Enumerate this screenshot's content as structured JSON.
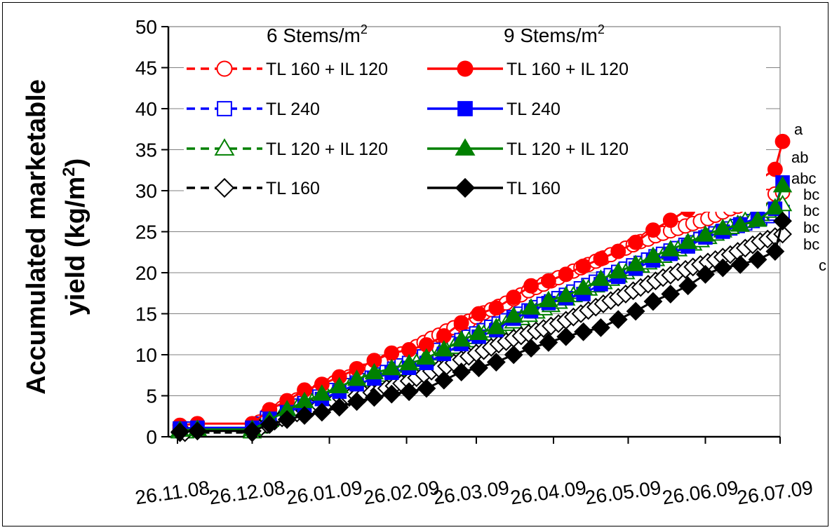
{
  "chart_data": {
    "type": "line",
    "ylabel_line1": "Accumulated marketable",
    "ylabel_line2": "yield (kg/m",
    "ylabel_sup": "2",
    "ylabel_close": ")",
    "ylim": [
      0,
      50
    ],
    "yticks": [
      "0",
      "5",
      "10",
      "15",
      "20",
      "25",
      "30",
      "35",
      "40",
      "45",
      "50"
    ],
    "x_date_range": [
      "2008-11-26",
      "2009-07-26"
    ],
    "xticks": [
      "26.11.08",
      "26.12.08",
      "26.01.09",
      "26.02.09",
      "26.03.09",
      "26.04.09",
      "26.05.09",
      "26.06.09",
      "26.07.09"
    ],
    "grid": "horizontal",
    "legend_headers": [
      {
        "text": "6 Stems/m",
        "sup": "2"
      },
      {
        "text": "9 Stems/m",
        "sup": "2"
      }
    ],
    "series": [
      {
        "name": "TL 160 + IL 120",
        "group": "6 Stems/m2",
        "color": "#ff0000",
        "marker": "circle",
        "filled": false,
        "dashed": true,
        "x": [
          1,
          3,
          30,
          33,
          36,
          39,
          42,
          45,
          48,
          51,
          54,
          57,
          60,
          63,
          66,
          69,
          72,
          75,
          78,
          81,
          84,
          87,
          90,
          93,
          96,
          99,
          102,
          105,
          108,
          111,
          114,
          117,
          120,
          123,
          126,
          129,
          132,
          135,
          138,
          141,
          144,
          147,
          150,
          153,
          156,
          159,
          162,
          165,
          168,
          171,
          174,
          177,
          180,
          183,
          186,
          189,
          192,
          195,
          198,
          201,
          204,
          207,
          210,
          213,
          216,
          219,
          222,
          225,
          228,
          231,
          234,
          237,
          240,
          243
        ],
        "y": [
          1.0,
          1.0,
          1.0,
          1.8,
          2.7,
          3.1,
          3.5,
          4.0,
          4.5,
          4.8,
          5.2,
          5.7,
          6.2,
          6.6,
          7.0,
          7.3,
          7.6,
          8.0,
          8.3,
          8.7,
          9.2,
          9.6,
          10.1,
          10.6,
          11.0,
          11.5,
          12.0,
          12.4,
          12.9,
          13.3,
          13.7,
          14.1,
          14.6,
          15.1,
          15.5,
          15.9,
          16.3,
          16.8,
          17.3,
          17.8,
          18.2,
          18.6,
          19.0,
          19.4,
          19.8,
          20.2,
          20.6,
          21.0,
          21.4,
          21.8,
          22.2,
          22.6,
          23.0,
          23.4,
          23.8,
          24.1,
          24.5,
          24.8,
          25.1,
          25.4,
          25.7,
          26.0,
          26.3,
          26.6,
          27.0,
          27.4,
          27.8,
          28.1,
          28.4,
          28.7,
          29.0,
          29.3,
          29.6,
          29.8
        ]
      },
      {
        "name": "TL 240",
        "group": "6 Stems/m2",
        "color": "#0000ff",
        "marker": "square",
        "filled": false,
        "dashed": true,
        "x": [
          1,
          3,
          30,
          33,
          36,
          39,
          42,
          45,
          48,
          51,
          54,
          57,
          60,
          63,
          66,
          69,
          72,
          75,
          78,
          81,
          84,
          87,
          90,
          93,
          96,
          99,
          102,
          105,
          108,
          111,
          114,
          117,
          120,
          123,
          126,
          129,
          132,
          135,
          138,
          141,
          144,
          147,
          150,
          153,
          156,
          159,
          162,
          165,
          168,
          171,
          174,
          177,
          180,
          183,
          186,
          189,
          192,
          195,
          198,
          201,
          204,
          207,
          210,
          213,
          216,
          219,
          222,
          225,
          228,
          231,
          234,
          237,
          240,
          243
        ],
        "y": [
          1.0,
          1.0,
          1.0,
          1.6,
          2.3,
          2.6,
          3.0,
          3.4,
          3.8,
          4.1,
          4.5,
          4.9,
          5.3,
          5.7,
          6.0,
          6.3,
          6.6,
          6.9,
          7.2,
          7.6,
          7.9,
          8.3,
          8.7,
          9.0,
          9.4,
          9.8,
          10.2,
          10.6,
          11.0,
          11.4,
          11.8,
          12.2,
          12.6,
          13.0,
          13.4,
          13.8,
          14.2,
          14.6,
          15.0,
          15.4,
          15.8,
          16.2,
          16.5,
          16.9,
          17.3,
          17.7,
          18.1,
          18.5,
          18.9,
          19.3,
          19.7,
          20.1,
          20.5,
          20.9,
          21.2,
          21.6,
          22.0,
          22.3,
          22.7,
          23.0,
          23.4,
          23.7,
          24.1,
          24.4,
          24.8,
          25.1,
          25.4,
          25.7,
          26.0,
          26.3,
          26.6,
          26.9,
          27.2,
          27.4
        ]
      },
      {
        "name": "TL 120 + IL 120",
        "group": "6 Stems/m2",
        "color": "#008000",
        "marker": "triangle",
        "filled": false,
        "dashed": true,
        "x": [
          1,
          3,
          30,
          33,
          36,
          39,
          42,
          45,
          48,
          51,
          54,
          57,
          60,
          63,
          66,
          69,
          72,
          75,
          78,
          81,
          84,
          87,
          90,
          93,
          96,
          99,
          102,
          105,
          108,
          111,
          114,
          117,
          120,
          123,
          126,
          129,
          132,
          135,
          138,
          141,
          144,
          147,
          150,
          153,
          156,
          159,
          162,
          165,
          168,
          171,
          174,
          177,
          180,
          183,
          186,
          189,
          192,
          195,
          198,
          201,
          204,
          207,
          210,
          213,
          216,
          219,
          222,
          225,
          228,
          231,
          234,
          237,
          240,
          243
        ],
        "y": [
          0.6,
          0.6,
          0.6,
          1.2,
          1.9,
          2.3,
          2.7,
          3.1,
          3.5,
          3.8,
          4.2,
          4.6,
          5.0,
          5.4,
          5.7,
          6.0,
          6.3,
          6.6,
          6.9,
          7.2,
          7.5,
          7.9,
          8.2,
          8.6,
          9.0,
          9.3,
          9.7,
          10.1,
          10.5,
          10.9,
          11.3,
          11.7,
          12.1,
          12.5,
          12.9,
          13.3,
          13.7,
          14.0,
          14.4,
          14.8,
          15.2,
          15.6,
          16.0,
          16.4,
          16.8,
          17.2,
          17.6,
          18.0,
          18.4,
          18.8,
          19.2,
          19.6,
          20.0,
          20.4,
          20.8,
          21.2,
          21.6,
          22.0,
          22.4,
          22.8,
          23.2,
          23.5,
          23.9,
          24.3,
          24.7,
          25.1,
          25.5,
          25.9,
          26.3,
          26.7,
          27.1,
          27.5,
          27.9,
          28.3
        ]
      },
      {
        "name": "TL 160",
        "group": "6 Stems/m2",
        "color": "#000000",
        "marker": "diamond",
        "filled": false,
        "dashed": true,
        "x": [
          1,
          3,
          30,
          33,
          36,
          39,
          42,
          45,
          48,
          51,
          54,
          57,
          60,
          63,
          66,
          69,
          72,
          75,
          78,
          81,
          84,
          87,
          90,
          93,
          96,
          99,
          102,
          105,
          108,
          111,
          114,
          117,
          120,
          123,
          126,
          129,
          132,
          135,
          138,
          141,
          144,
          147,
          150,
          153,
          156,
          159,
          162,
          165,
          168,
          171,
          174,
          177,
          180,
          183,
          186,
          189,
          192,
          195,
          198,
          201,
          204,
          207,
          210,
          213,
          216,
          219,
          222,
          225,
          228,
          231,
          234,
          237,
          240,
          243
        ],
        "y": [
          0.5,
          0.5,
          0.5,
          1.0,
          1.5,
          1.9,
          2.3,
          2.6,
          2.9,
          3.2,
          3.5,
          3.8,
          4.1,
          4.3,
          4.6,
          4.8,
          5.0,
          5.2,
          5.4,
          5.6,
          5.9,
          6.2,
          6.5,
          6.8,
          7.2,
          7.6,
          8.0,
          8.3,
          8.6,
          9.0,
          9.4,
          9.8,
          10.2,
          10.5,
          10.9,
          11.3,
          11.6,
          12.0,
          12.3,
          12.6,
          12.9,
          13.2,
          13.5,
          13.8,
          14.2,
          14.6,
          15.0,
          15.4,
          15.8,
          16.2,
          16.6,
          17.0,
          17.4,
          17.8,
          18.2,
          18.6,
          19.0,
          19.4,
          19.7,
          20.1,
          20.4,
          20.7,
          21.0,
          21.3,
          21.6,
          21.9,
          22.2,
          22.6,
          23.0,
          23.4,
          23.8,
          24.1,
          24.4,
          24.7
        ]
      },
      {
        "name": "TL 160 + IL 120",
        "group": "9 Stems/m2",
        "color": "#ff0000",
        "marker": "circle",
        "filled": true,
        "dashed": false,
        "x": [
          1,
          8,
          30,
          37,
          44,
          51,
          58,
          65,
          72,
          79,
          86,
          93,
          100,
          107,
          114,
          121,
          128,
          135,
          142,
          149,
          156,
          163,
          170,
          177,
          184,
          191,
          198,
          205,
          212,
          219,
          226,
          233,
          240,
          243
        ],
        "y": [
          1.4,
          1.6,
          1.6,
          3.3,
          4.4,
          5.7,
          6.4,
          7.3,
          8.3,
          9.3,
          10.2,
          10.6,
          11.2,
          12.3,
          13.9,
          15.0,
          15.7,
          17.0,
          18.4,
          19.0,
          19.8,
          20.8,
          21.7,
          22.6,
          23.7,
          25.2,
          26.4,
          27.7,
          28.8,
          29.7,
          30.3,
          31.2,
          32.6,
          36.0
        ]
      },
      {
        "name": "TL 240",
        "group": "9 Stems/m2",
        "color": "#0000ff",
        "marker": "square",
        "filled": true,
        "dashed": false,
        "x": [
          1,
          8,
          30,
          37,
          44,
          51,
          58,
          65,
          72,
          79,
          86,
          93,
          100,
          107,
          114,
          121,
          128,
          135,
          142,
          149,
          156,
          163,
          170,
          177,
          184,
          191,
          198,
          205,
          212,
          219,
          226,
          233,
          240,
          243
        ],
        "y": [
          1.0,
          1.1,
          1.1,
          2.2,
          3.0,
          3.8,
          4.6,
          5.5,
          6.4,
          7.1,
          7.8,
          8.4,
          9.0,
          10.1,
          11.3,
          12.2,
          13.0,
          14.4,
          15.3,
          16.3,
          16.9,
          17.4,
          18.6,
          19.5,
          20.5,
          21.5,
          22.3,
          23.2,
          24.3,
          25.0,
          25.9,
          26.7,
          27.8,
          31.0
        ]
      },
      {
        "name": "TL 120 + IL 120",
        "group": "9 Stems/m2",
        "color": "#008000",
        "marker": "triangle",
        "filled": true,
        "dashed": false,
        "x": [
          1,
          8,
          30,
          37,
          44,
          51,
          58,
          65,
          72,
          79,
          86,
          93,
          100,
          107,
          114,
          121,
          128,
          135,
          142,
          149,
          156,
          163,
          170,
          177,
          184,
          191,
          198,
          205,
          212,
          219,
          226,
          233,
          240,
          243
        ],
        "y": [
          0.8,
          0.9,
          0.9,
          2.0,
          3.3,
          4.3,
          5.2,
          6.1,
          7.0,
          7.8,
          8.3,
          8.9,
          9.6,
          10.6,
          11.8,
          12.6,
          13.3,
          14.7,
          15.7,
          16.6,
          17.2,
          18.1,
          19.2,
          20.1,
          21.0,
          22.0,
          22.8,
          23.7,
          24.6,
          25.4,
          25.8,
          26.4,
          27.9,
          30.6
        ]
      },
      {
        "name": "TL 160",
        "group": "9 Stems/m2",
        "color": "#000000",
        "marker": "diamond",
        "filled": true,
        "dashed": false,
        "x": [
          1,
          8,
          30,
          37,
          44,
          51,
          58,
          65,
          72,
          79,
          86,
          93,
          100,
          107,
          114,
          121,
          128,
          135,
          142,
          149,
          156,
          163,
          170,
          177,
          184,
          191,
          198,
          205,
          212,
          219,
          226,
          233,
          240,
          243
        ],
        "y": [
          0.6,
          0.7,
          0.7,
          1.5,
          2.1,
          2.6,
          3.0,
          3.6,
          4.3,
          4.8,
          5.2,
          5.5,
          5.9,
          6.9,
          7.9,
          8.4,
          9.1,
          10.0,
          10.8,
          11.5,
          12.2,
          12.8,
          13.3,
          14.3,
          15.3,
          16.5,
          17.4,
          18.4,
          19.8,
          20.6,
          21.0,
          21.6,
          22.6,
          26.3
        ]
      }
    ],
    "significance_labels": [
      "a",
      "ab",
      "abc",
      "bc",
      "bc",
      "bc",
      "bc",
      "c"
    ]
  }
}
